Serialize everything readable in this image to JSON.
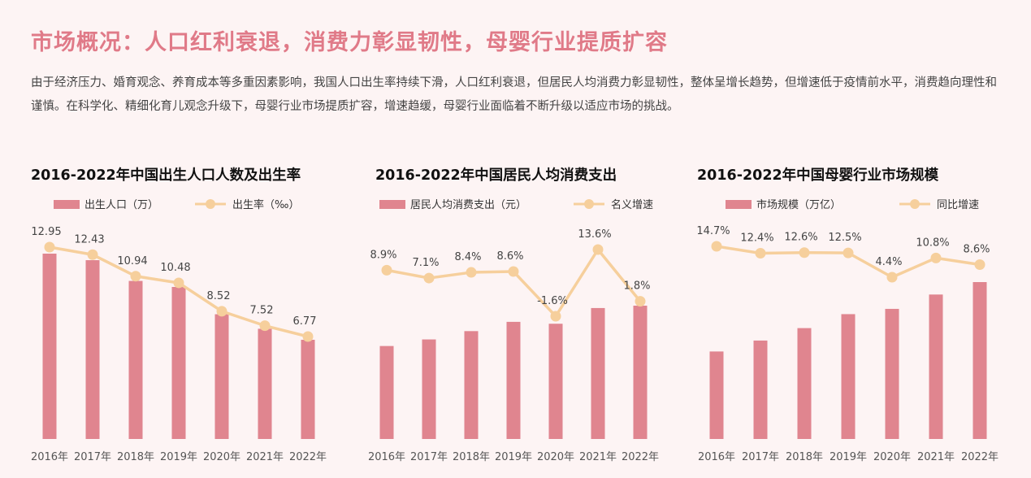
{
  "page": {
    "title": "市场概况：人口红利衰退，消费力彰显韧性，母婴行业提质扩容",
    "description": "由于经济压力、婚育观念、养育成本等多重因素影响，我国人口出生率持续下滑，人口红利衰退，但居民人均消费力彰显韧性，整体呈增长趋势，但增速低于疫情前水平，消费趋向理性和谨慎。在科学化、精细化育儿观念升级下，母婴行业市场提质扩容，增速趋缓，母婴行业面临着不断升级以适应市场的挑战。"
  },
  "colors": {
    "bar": "#e0858f",
    "line": "#f6cf9c",
    "title": "#e07a88"
  },
  "chart_data": [
    {
      "type": "bar",
      "title": "2016-2022年中国出生人口人数及出生率",
      "categories": [
        "2016年",
        "2017年",
        "2018年",
        "2019年",
        "2020年",
        "2021年",
        "2022年"
      ],
      "series": [
        {
          "name": "出生人口（万）",
          "type": "bar",
          "values": [
            1786,
            1723,
            1523,
            1465,
            1202,
            1062,
            956
          ]
        },
        {
          "name": "出生率（‰）",
          "type": "line",
          "values": [
            12.95,
            12.43,
            10.94,
            10.48,
            8.52,
            7.52,
            6.77
          ],
          "labels": [
            "12.95",
            "12.43",
            "10.94",
            "10.48",
            "8.52",
            "7.52",
            "6.77"
          ]
        }
      ],
      "legend_position": "top-left",
      "grid": false
    },
    {
      "type": "bar",
      "title": "2016-2022年中国居民人均消费支出",
      "categories": [
        "2016年",
        "2017年",
        "2018年",
        "2019年",
        "2020年",
        "2021年",
        "2022年"
      ],
      "series": [
        {
          "name": "居民人均消费支出（元）",
          "type": "bar",
          "values": [
            17111,
            18322,
            19853,
            21559,
            21210,
            24100,
            24538
          ]
        },
        {
          "name": "名义增速",
          "type": "line",
          "values": [
            8.9,
            7.1,
            8.4,
            8.6,
            -1.6,
            13.6,
            1.8
          ],
          "labels": [
            "8.9%",
            "7.1%",
            "8.4%",
            "8.6%",
            "-1.6%",
            "13.6%",
            "1.8%"
          ]
        }
      ],
      "legend_position": "top-left",
      "grid": false
    },
    {
      "type": "bar",
      "title": "2016-2022年中国母婴行业市场规模",
      "categories": [
        "2016年",
        "2017年",
        "2018年",
        "2019年",
        "2020年",
        "2021年",
        "2022年"
      ],
      "series": [
        {
          "name": "市场规模（万亿）",
          "type": "bar",
          "values": [
            2.32,
            2.61,
            2.94,
            3.31,
            3.45,
            3.83,
            4.16
          ]
        },
        {
          "name": "同比增速",
          "type": "line",
          "values": [
            14.7,
            12.4,
            12.6,
            12.5,
            4.4,
            10.8,
            8.6
          ],
          "labels": [
            "14.7%",
            "12.4%",
            "12.6%",
            "12.5%",
            "4.4%",
            "10.8%",
            "8.6%"
          ]
        }
      ],
      "legend_position": "top-left",
      "grid": false
    }
  ]
}
